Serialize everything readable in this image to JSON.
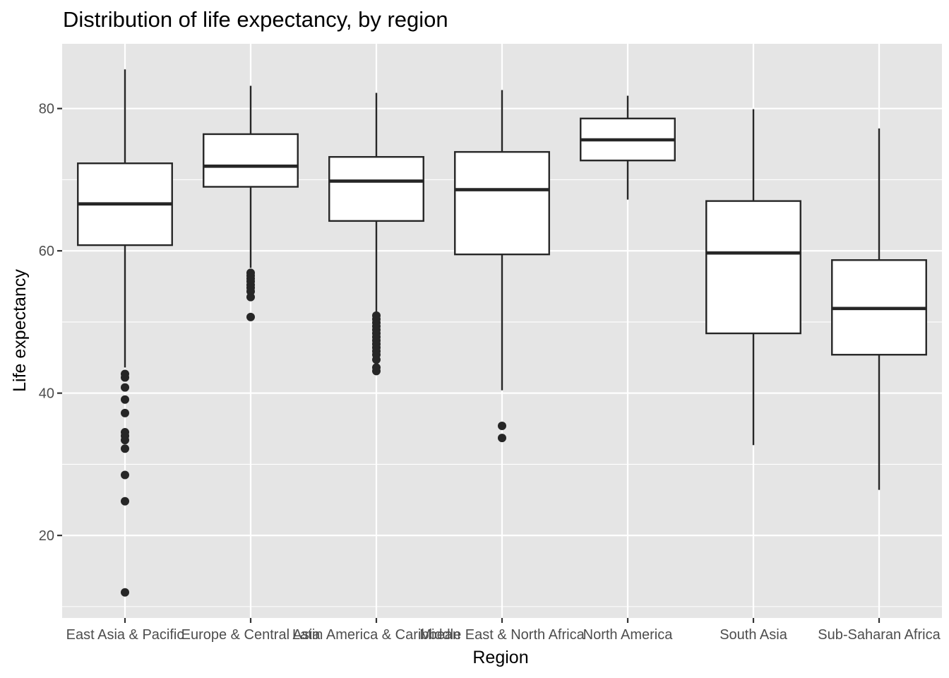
{
  "chart_data": {
    "type": "boxplot",
    "title": "Distribution of life expectancy, by region",
    "xlabel": "Region",
    "ylabel": "Life expectancy",
    "ylim": [
      8.4,
      89.1
    ],
    "y_ticks": [
      20,
      40,
      60,
      80
    ],
    "y_tick_labels": [
      "20",
      "40",
      "60",
      "80"
    ],
    "y_minor_gridlines": [
      10,
      30,
      50,
      70
    ],
    "grid": true,
    "legend": "none",
    "colors": {
      "panel": "#E5E5E5",
      "grid": "#FFFFFF",
      "box_fill": "#FFFFFF",
      "box_line": "#262626",
      "outlier": "#262626"
    },
    "categories": [
      "East Asia & Pacific",
      "Europe & Central Asia",
      "Latin America & Caribbean",
      "Middle East & North Africa",
      "North America",
      "South Asia",
      "Sub-Saharan Africa"
    ],
    "boxes": [
      {
        "category": "East Asia & Pacific",
        "whisker_low": 43.6,
        "q1": 60.8,
        "median": 66.6,
        "q3": 72.3,
        "whisker_high": 85.5,
        "outliers": [
          42.7,
          42.2,
          40.8,
          39.1,
          37.2,
          34.5,
          34.0,
          33.4,
          32.2,
          28.5,
          24.8,
          12.0
        ]
      },
      {
        "category": "Europe & Central Asia",
        "whisker_low": 57.6,
        "q1": 69.0,
        "median": 71.9,
        "q3": 76.4,
        "whisker_high": 83.2,
        "outliers": [
          56.9,
          56.5,
          56.1,
          55.7,
          55.2,
          54.8,
          54.3,
          53.5,
          50.7
        ]
      },
      {
        "category": "Latin America & Caribbean",
        "whisker_low": 51.4,
        "q1": 64.2,
        "median": 69.8,
        "q3": 73.2,
        "whisker_high": 82.2,
        "outliers": [
          50.9,
          50.4,
          49.9,
          49.4,
          48.9,
          48.4,
          47.9,
          47.4,
          46.9,
          46.4,
          45.9,
          45.4,
          44.7,
          43.6,
          43.1
        ]
      },
      {
        "category": "Middle East & North Africa",
        "whisker_low": 40.4,
        "q1": 59.5,
        "median": 68.6,
        "q3": 73.9,
        "whisker_high": 82.6,
        "outliers": [
          35.4,
          33.7
        ]
      },
      {
        "category": "North America",
        "whisker_low": 67.2,
        "q1": 72.7,
        "median": 75.6,
        "q3": 78.6,
        "whisker_high": 81.8,
        "outliers": []
      },
      {
        "category": "South Asia",
        "whisker_low": 32.7,
        "q1": 48.4,
        "median": 59.7,
        "q3": 67.0,
        "whisker_high": 79.9,
        "outliers": []
      },
      {
        "category": "Sub-Saharan Africa",
        "whisker_low": 26.4,
        "q1": 45.4,
        "median": 51.9,
        "q3": 58.7,
        "whisker_high": 77.2,
        "outliers": []
      }
    ]
  }
}
